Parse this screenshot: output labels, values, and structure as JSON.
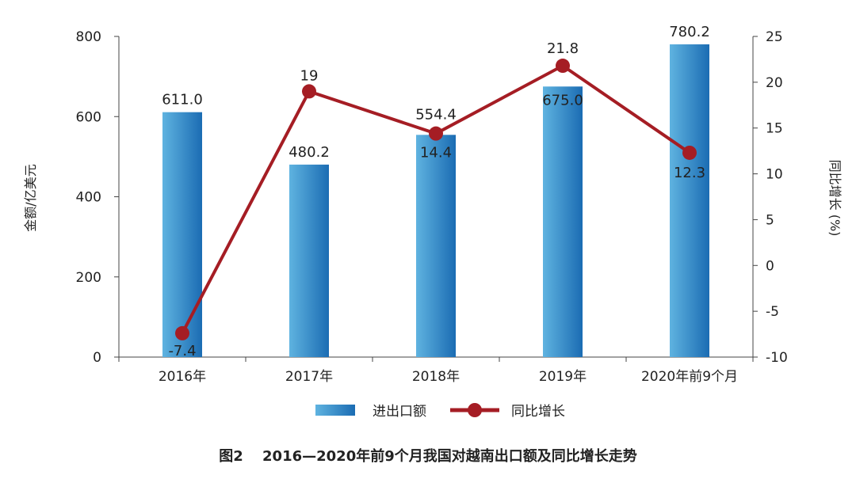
{
  "chart_data": {
    "type": "bar+line",
    "title": "图2　 2016—2020年前9个月我国对越南出口额及同比增长走势",
    "categories": [
      "2016年",
      "2017年",
      "2018年",
      "2019年",
      "2020年前9个月"
    ],
    "series": [
      {
        "name": "进出口额",
        "type": "bar",
        "axis": "left",
        "values": [
          611.0,
          480.2,
          554.4,
          675.0,
          780.2
        ],
        "labels": [
          "611.0",
          "480.2",
          "554.4",
          "675.0",
          "780.2"
        ],
        "color": "#2a7fc0"
      },
      {
        "name": "同比增长",
        "type": "line",
        "axis": "right",
        "values": [
          -7.4,
          19,
          14.4,
          21.8,
          12.3
        ],
        "labels": [
          "-7.4",
          "19",
          "14.4",
          "21.8",
          "12.3"
        ],
        "color": "#a51d24"
      }
    ],
    "ylabel": "金额/亿美元",
    "y2label": "同比增长 (%)",
    "ylim": [
      0,
      800
    ],
    "y2lim": [
      -10,
      25
    ],
    "yticks": [
      "0",
      "200",
      "400",
      "600",
      "800"
    ],
    "y2ticks": [
      "-10",
      "-5",
      "0",
      "5",
      "10",
      "15",
      "20",
      "25"
    ],
    "grid": false,
    "legend": "bottom"
  }
}
